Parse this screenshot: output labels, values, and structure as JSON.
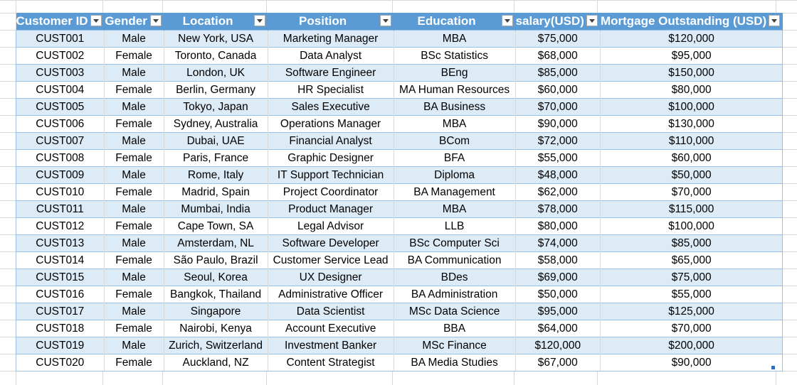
{
  "table": {
    "headers": [
      "Customer ID",
      "Gender",
      "Location",
      "Position",
      "Education",
      "salary(USD)",
      "Mortgage Outstanding (USD)"
    ],
    "rows": [
      [
        "CUST001",
        "Male",
        "New York, USA",
        "Marketing Manager",
        "MBA",
        "$75,000",
        "$120,000"
      ],
      [
        "CUST002",
        "Female",
        "Toronto, Canada",
        "Data Analyst",
        "BSc Statistics",
        "$68,000",
        "$95,000"
      ],
      [
        "CUST003",
        "Male",
        "London, UK",
        "Software Engineer",
        "BEng",
        "$85,000",
        "$150,000"
      ],
      [
        "CUST004",
        "Female",
        "Berlin, Germany",
        "HR Specialist",
        "MA Human Resources",
        "$60,000",
        "$80,000"
      ],
      [
        "CUST005",
        "Male",
        "Tokyo, Japan",
        "Sales Executive",
        "BA Business",
        "$70,000",
        "$100,000"
      ],
      [
        "CUST006",
        "Female",
        "Sydney, Australia",
        "Operations Manager",
        "MBA",
        "$90,000",
        "$130,000"
      ],
      [
        "CUST007",
        "Male",
        "Dubai, UAE",
        "Financial Analyst",
        "BCom",
        "$72,000",
        "$110,000"
      ],
      [
        "CUST008",
        "Female",
        "Paris, France",
        "Graphic Designer",
        "BFA",
        "$55,000",
        "$60,000"
      ],
      [
        "CUST009",
        "Male",
        "Rome, Italy",
        "IT Support Technician",
        "Diploma",
        "$48,000",
        "$50,000"
      ],
      [
        "CUST010",
        "Female",
        "Madrid, Spain",
        "Project Coordinator",
        "BA Management",
        "$62,000",
        "$70,000"
      ],
      [
        "CUST011",
        "Male",
        "Mumbai, India",
        "Product Manager",
        "MBA",
        "$78,000",
        "$115,000"
      ],
      [
        "CUST012",
        "Female",
        "Cape Town, SA",
        "Legal Advisor",
        "LLB",
        "$80,000",
        "$100,000"
      ],
      [
        "CUST013",
        "Male",
        "Amsterdam, NL",
        "Software Developer",
        "BSc Computer Sci",
        "$74,000",
        "$85,000"
      ],
      [
        "CUST014",
        "Female",
        "São Paulo, Brazil",
        "Customer Service Lead",
        "BA Communication",
        "$58,000",
        "$65,000"
      ],
      [
        "CUST015",
        "Male",
        "Seoul, Korea",
        "UX Designer",
        "BDes",
        "$69,000",
        "$75,000"
      ],
      [
        "CUST016",
        "Female",
        "Bangkok, Thailand",
        "Administrative Officer",
        "BA Administration",
        "$50,000",
        "$55,000"
      ],
      [
        "CUST017",
        "Male",
        "Singapore",
        "Data Scientist",
        "MSc Data Science",
        "$95,000",
        "$125,000"
      ],
      [
        "CUST018",
        "Female",
        "Nairobi, Kenya",
        "Account Executive",
        "BBA",
        "$64,000",
        "$70,000"
      ],
      [
        "CUST019",
        "Male",
        "Zurich, Switzerland",
        "Investment Banker",
        "MSc Finance",
        "$120,000",
        "$200,000"
      ],
      [
        "CUST020",
        "Female",
        "Auckland, NZ",
        "Content Strategist",
        "BA Media Studies",
        "$67,000",
        "$90,000"
      ]
    ]
  },
  "icons": {
    "filter": "filter-dropdown-arrow-icon"
  },
  "colors": {
    "header_bg": "#5b9bd5",
    "band_bg": "#ddebf7",
    "border": "#9bc2e6",
    "gridline": "#d9d9d9"
  }
}
